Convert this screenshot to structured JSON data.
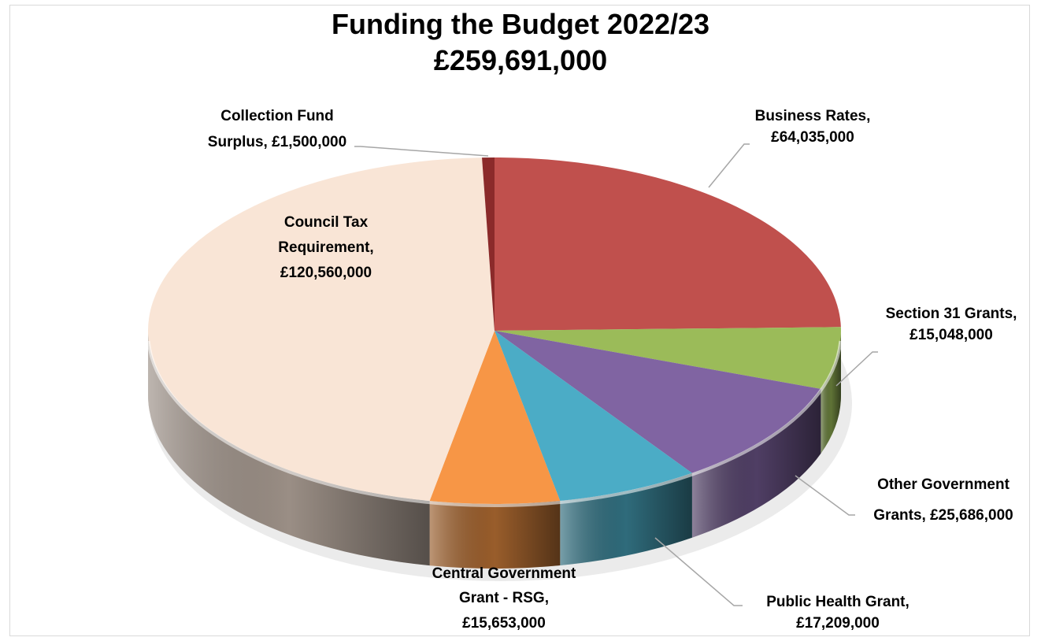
{
  "chart_data": {
    "type": "pie",
    "title": "Funding the Budget 2022/23",
    "subtitle": "£259,691,000",
    "slices": [
      {
        "label": "Business Rates",
        "value": 64035000,
        "value_text": "£64,035,000",
        "color": "#C0504D"
      },
      {
        "label": "Section 31 Grants",
        "value": 15048000,
        "value_text": "£15,048,000",
        "color": "#9BBB59"
      },
      {
        "label": "Other Government Grants",
        "value": 25686000,
        "value_text": "£25,686,000",
        "color": "#8064A2"
      },
      {
        "label": "Public Health Grant",
        "value": 17209000,
        "value_text": "£17,209,000",
        "color": "#4BACC6"
      },
      {
        "label": "Central Government Grant - RSG",
        "value": 15653000,
        "value_text": "£15,653,000",
        "color": "#F79646"
      },
      {
        "label": "Council Tax Requirement",
        "value": 120560000,
        "value_text": "£120,560,000",
        "color": "#F9E5D6"
      },
      {
        "label": "Collection Fund Surplus",
        "value": 1500000,
        "value_text": "£1,500,000",
        "color": "#8B2A2A"
      }
    ],
    "legend": "none",
    "data_labels": "outside-with-leaders"
  },
  "labels": {
    "business_rates": [
      "Business Rates,",
      "£64,035,000"
    ],
    "section31": [
      "Section 31 Grants,",
      "£15,048,000"
    ],
    "other_gov": [
      "Other Government",
      "Grants, £25,686,000"
    ],
    "public_health": [
      "Public Health Grant,",
      "£17,209,000"
    ],
    "rsg": [
      "Central Government",
      "Grant - RSG,",
      "£15,653,000"
    ],
    "council_tax": [
      "Council Tax",
      "Requirement,",
      "£120,560,000"
    ],
    "collection_fund": [
      "Collection Fund",
      "Surplus, £1,500,000"
    ]
  }
}
